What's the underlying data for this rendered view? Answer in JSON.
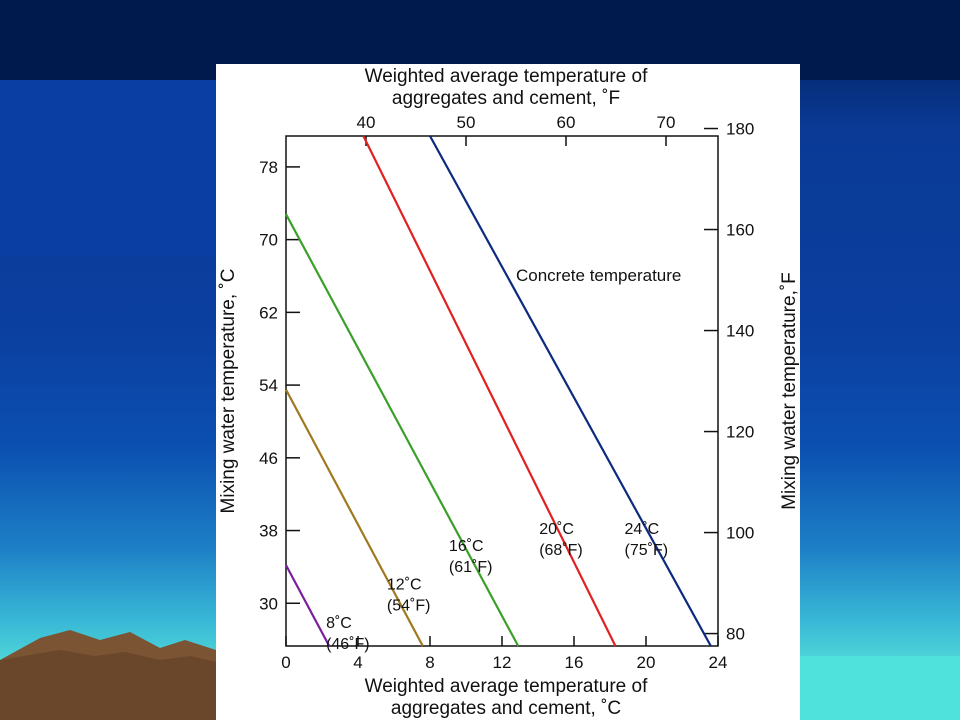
{
  "slide": {
    "background_colors": {
      "header": "#001a4d",
      "panel": "#0b3ea3",
      "sea": "#4fe1db",
      "mountain": "#7a5433"
    }
  },
  "chart_data": {
    "type": "line",
    "x_axis_bottom": {
      "label_line1": "Weighted average temperature of",
      "label_line2": "aggregates and cement, ˚C",
      "range": [
        0,
        24
      ],
      "ticks": [
        0,
        4,
        8,
        12,
        16,
        20,
        24
      ]
    },
    "x_axis_top": {
      "label_line1": "Weighted average temperature of",
      "label_line2": "aggregates and cement, ˚F",
      "ticks": [
        40,
        50,
        60,
        70
      ]
    },
    "y_axis_left": {
      "label": "Mixing water temperature, ˚C",
      "range": [
        25.3,
        81.4
      ],
      "ticks": [
        30,
        38,
        46,
        54,
        62,
        70,
        78
      ]
    },
    "y_axis_right": {
      "label": "Mixing water temperature,˚F",
      "ticks": [
        80,
        100,
        120,
        140,
        160,
        180
      ]
    },
    "annotation": "Concrete temperature",
    "grid": false,
    "series": [
      {
        "name_line1": "8˚C",
        "name_line2": "(46˚F)",
        "color": "#7b1f9e",
        "points": [
          [
            0,
            34.2
          ],
          [
            2.4,
            25.3
          ]
        ]
      },
      {
        "name_line1": "12˚C",
        "name_line2": "(54˚F)",
        "color": "#a0781e",
        "points": [
          [
            0,
            53.5
          ],
          [
            7.6,
            25.3
          ]
        ]
      },
      {
        "name_line1": "16˚C",
        "name_line2": "(61˚F)",
        "color": "#3aa02a",
        "points": [
          [
            0,
            72.8
          ],
          [
            12.9,
            25.3
          ]
        ]
      },
      {
        "name_line1": "20˚C",
        "name_line2": "(68˚F)",
        "color": "#e02121",
        "points": [
          [
            4.3,
            81.4
          ],
          [
            18.3,
            25.3
          ]
        ]
      },
      {
        "name_line1": "24˚C",
        "name_line2": "(75˚F)",
        "color": "#0b2a80",
        "points": [
          [
            8.0,
            81.4
          ],
          [
            23.6,
            25.3
          ]
        ]
      }
    ]
  }
}
